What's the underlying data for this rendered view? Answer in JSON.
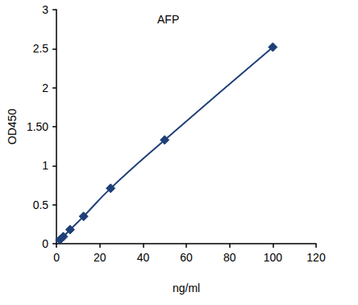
{
  "chart_data": {
    "type": "line",
    "title": "AFP",
    "x_label": "ng/ml",
    "y_label": "OD450",
    "x": [
      1.56,
      3.125,
      6.25,
      12.5,
      25,
      50,
      100
    ],
    "values": [
      0.05,
      0.09,
      0.18,
      0.35,
      0.71,
      1.33,
      2.52
    ],
    "color": "#1f3f78",
    "marker": "diamond",
    "line_style": "solid",
    "xlim": [
      0,
      120
    ],
    "xticks": [
      0,
      20,
      40,
      60,
      80,
      100,
      120
    ],
    "ylim": [
      0,
      3
    ],
    "yticks": [
      0,
      0.5,
      1,
      {
        "value": 1.5,
        "label": "1.50"
      },
      2,
      2.5,
      3
    ],
    "grid": false
  }
}
